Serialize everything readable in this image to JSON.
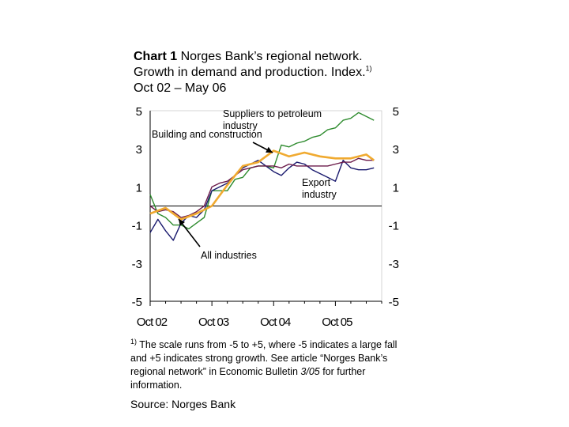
{
  "title": {
    "bold": "Chart 1",
    "line1": " Norges Bank’s regional network.",
    "line2": "Growth in demand and production. Index.",
    "footnote_mark": "1)",
    "line3": "Oct 02 – May 06"
  },
  "footnote": {
    "mark": "1)",
    "text_a": " The scale runs from -5 to +5, where -5 indicates a large fall and +5 indicates strong growth. See article “Norges Bank’s regional network” in Economic Bulletin ",
    "text_italic": "3/05",
    "text_b": " for further information."
  },
  "source": "Source: Norges Bank",
  "colors": {
    "suppliers": "#2e8b2e",
    "building": "#f0aa30",
    "all": "#1a1a6e",
    "export": "#6b1a4a",
    "axis": "#000000"
  },
  "chart_data": {
    "type": "line",
    "ylim": [
      -5,
      5
    ],
    "yticks": [
      "5",
      "3",
      "1",
      "-1",
      "-3",
      "-5"
    ],
    "x_tick_labels": [
      "Oct 02",
      "Oct 03",
      "Oct 04",
      "Oct 05"
    ],
    "x_ticks": [
      0,
      4,
      8,
      12
    ],
    "x_range": [
      0,
      15
    ],
    "grid": false,
    "zero_line": 0,
    "annotations": [
      {
        "id": "suppliers",
        "label_lines": [
          "Suppliers to petroleum",
          "industry"
        ]
      },
      {
        "id": "building",
        "label_lines": [
          "Building and construction"
        ]
      },
      {
        "id": "export",
        "label_lines": [
          "Export",
          "industry"
        ]
      },
      {
        "id": "all",
        "label_lines": [
          "All industries"
        ]
      }
    ],
    "series": [
      {
        "id": "suppliers",
        "name": "Suppliers to petroleum industry",
        "x": [
          0,
          0.5,
          1,
          1.5,
          2,
          2.5,
          3,
          3.5,
          4,
          4.5,
          5,
          5.5,
          6,
          6.5,
          7,
          7.5,
          8,
          8.5,
          9,
          9.5,
          10,
          10.5,
          11,
          11.5,
          12,
          12.5,
          13,
          13.5,
          14,
          14.5
        ],
        "y": [
          0.6,
          -0.4,
          -0.6,
          -1.0,
          -1.0,
          -1.2,
          -0.9,
          -0.6,
          0.8,
          0.8,
          0.8,
          1.4,
          1.5,
          2.0,
          2.1,
          2.1,
          2.0,
          3.2,
          3.1,
          3.3,
          3.4,
          3.6,
          3.7,
          4.0,
          4.1,
          4.5,
          4.6,
          4.9,
          4.7,
          4.5
        ]
      },
      {
        "id": "building",
        "name": "Building and construction",
        "x": [
          0,
          1,
          2,
          3,
          4,
          5,
          6,
          7,
          8,
          9,
          10,
          11,
          12,
          13,
          14,
          14.5
        ],
        "y": [
          -0.4,
          -0.1,
          -0.7,
          -0.4,
          0.0,
          1.1,
          2.1,
          2.3,
          2.9,
          2.6,
          2.8,
          2.6,
          2.5,
          2.5,
          2.7,
          2.4
        ]
      },
      {
        "id": "all",
        "name": "All industries",
        "x": [
          0,
          0.5,
          1,
          1.5,
          2,
          2.5,
          3,
          3.5,
          4,
          4.5,
          5,
          5.5,
          6,
          6.5,
          7,
          7.5,
          8,
          8.5,
          9,
          9.5,
          10,
          10.5,
          11,
          11.5,
          12,
          12.5,
          13,
          13.5,
          14,
          14.5
        ],
        "y": [
          -1.4,
          -0.7,
          -1.3,
          -1.8,
          -0.9,
          -0.5,
          -0.6,
          -0.2,
          0.8,
          1.0,
          1.2,
          1.6,
          2.0,
          2.2,
          2.4,
          2.1,
          1.8,
          1.6,
          2.0,
          2.3,
          2.2,
          1.9,
          1.7,
          1.5,
          1.3,
          2.4,
          2.0,
          1.9,
          1.9,
          2.0
        ]
      },
      {
        "id": "export",
        "name": "Export industry",
        "x": [
          0,
          0.5,
          1,
          1.5,
          2,
          2.5,
          3,
          3.5,
          4,
          4.5,
          5,
          5.5,
          6,
          6.5,
          7,
          7.5,
          8,
          8.5,
          9,
          9.5,
          10,
          10.5,
          11,
          11.5,
          12,
          12.5,
          13,
          13.5,
          14,
          14.5
        ],
        "y": [
          0.0,
          -0.3,
          -0.2,
          -0.3,
          -0.6,
          -0.5,
          -0.3,
          0.0,
          1.0,
          1.2,
          1.3,
          1.6,
          1.9,
          2.0,
          2.1,
          2.1,
          2.1,
          2.0,
          2.2,
          2.1,
          2.1,
          2.1,
          2.1,
          2.1,
          2.2,
          2.3,
          2.3,
          2.5,
          2.4,
          2.4
        ]
      }
    ]
  }
}
